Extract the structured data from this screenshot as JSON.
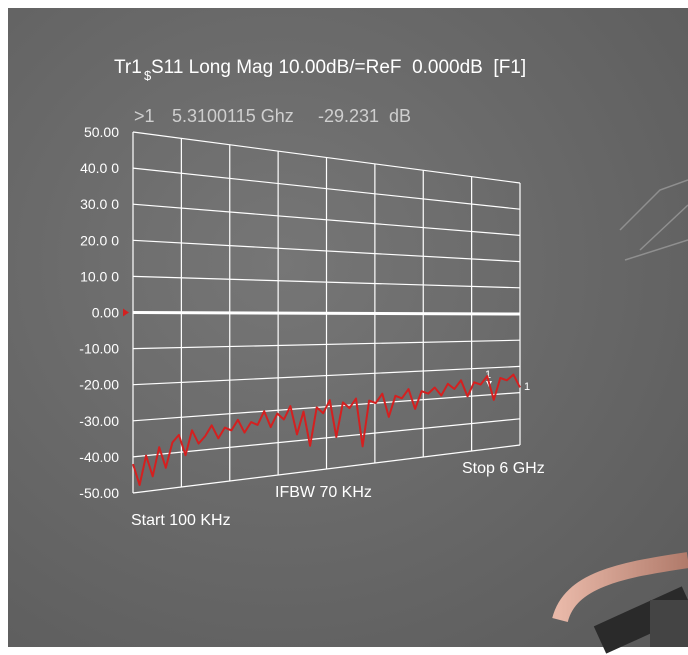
{
  "chart_data": {
    "type": "line",
    "title": "S11 Long Mag 10.00dB/=ReF  0.000dB  [F1]",
    "trace_name": "Tr1",
    "trace_sub": "$",
    "marker_readout": {
      "marker": ">1",
      "frequency": "5.3100115 Ghz",
      "value": "-29.231  dB"
    },
    "marker_label": "1",
    "annotations": {
      "start": "Start 100 KHz",
      "ifbw": "IFBW 70 KHz",
      "stop": "Stop 6 GHz"
    },
    "ylim": [
      -50,
      50
    ],
    "yticks": [
      {
        "value": 50,
        "label": "50.00"
      },
      {
        "value": 40,
        "label": "40.0 0"
      },
      {
        "value": 30,
        "label": "30.0 0"
      },
      {
        "value": 20,
        "label": "20.0 0"
      },
      {
        "value": 10,
        "label": "10.0 0"
      },
      {
        "value": 0,
        "label": "0.00"
      },
      {
        "value": -10,
        "label": "-10.00"
      },
      {
        "value": -20,
        "label": "-20.00"
      },
      {
        "value": -30,
        "label": "-30.00"
      },
      {
        "value": -40,
        "label": "-40.00"
      },
      {
        "value": -50,
        "label": "-50.00"
      }
    ],
    "grid": true,
    "series": [
      {
        "name": "Tr1",
        "color": "#d42020",
        "values": [
          -42,
          -48,
          -40,
          -46,
          -38,
          -44,
          -37,
          -35,
          -41,
          -34,
          -38,
          -36,
          -33,
          -37,
          -34,
          -35,
          -32,
          -36,
          -33,
          -34,
          -30,
          -35,
          -31,
          -33,
          -29,
          -38,
          -31,
          -42,
          -30,
          -32,
          -28,
          -40,
          -29,
          -31,
          -28,
          -44,
          -29,
          -30,
          -27,
          -35,
          -28,
          -29,
          -26,
          -33,
          -27,
          -28,
          -26,
          -29,
          -25,
          -27,
          -24,
          -30,
          -25,
          -26,
          -23,
          -32,
          -24,
          -25,
          -23,
          -28
        ]
      }
    ]
  }
}
